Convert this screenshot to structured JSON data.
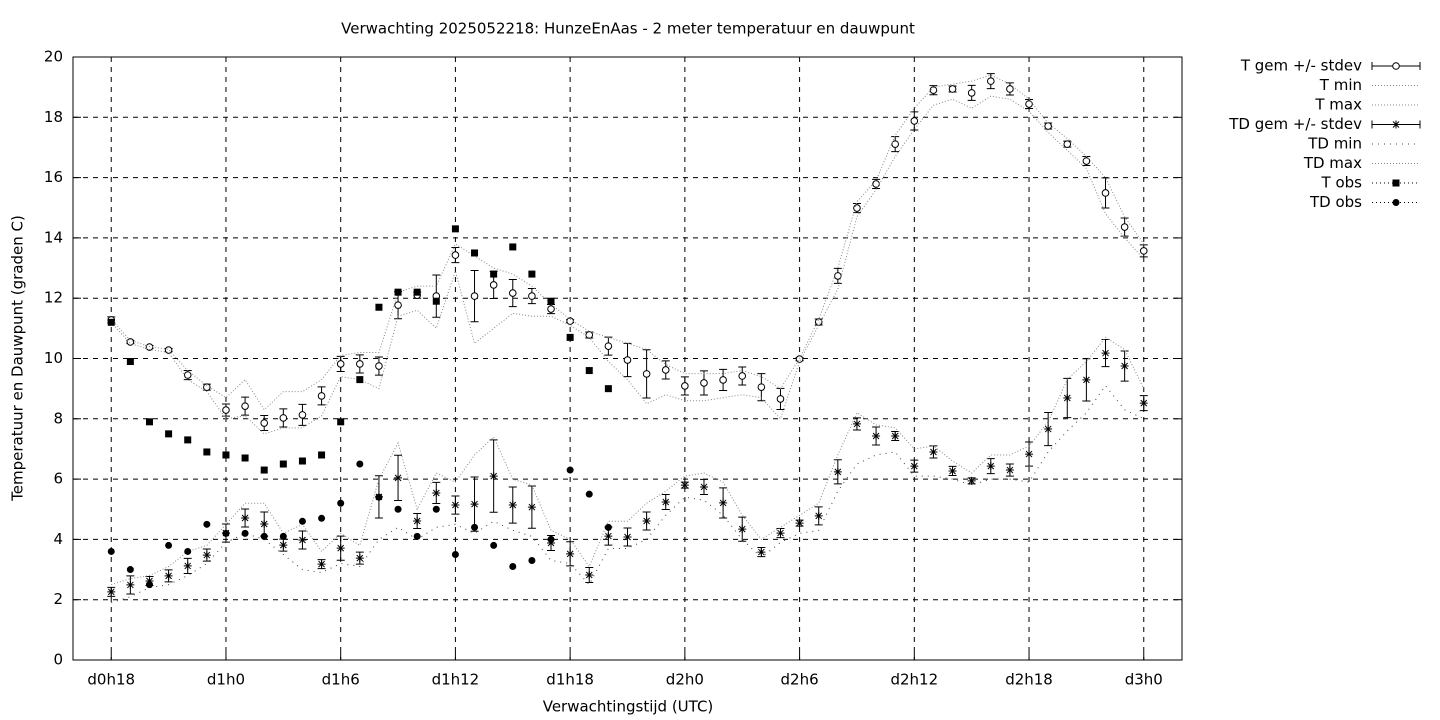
{
  "chart_data": {
    "type": "errorbar_line",
    "title": "Verwachting 2025052218: HunzeEnAas - 2 meter temperatuur en dauwpunt",
    "xlabel": "Verwachtingstijd (UTC)",
    "ylabel": "Temperatuur en Dauwpunt (graden C)",
    "xlim": [
      16,
      74
    ],
    "ylim": [
      0,
      20
    ],
    "xticks": [
      {
        "value": 18,
        "label": "d0h18"
      },
      {
        "value": 24,
        "label": "d1h0"
      },
      {
        "value": 30,
        "label": "d1h6"
      },
      {
        "value": 36,
        "label": "d1h12"
      },
      {
        "value": 42,
        "label": "d1h18"
      },
      {
        "value": 48,
        "label": "d2h0"
      },
      {
        "value": 54,
        "label": "d2h6"
      },
      {
        "value": 60,
        "label": "d2h12"
      },
      {
        "value": 66,
        "label": "d2h18"
      },
      {
        "value": 72,
        "label": "d3h0"
      }
    ],
    "yticks": [
      0,
      2,
      4,
      6,
      8,
      10,
      12,
      14,
      16,
      18,
      20
    ],
    "grid": true,
    "legend": "right",
    "x": [
      18,
      19,
      20,
      21,
      22,
      23,
      24,
      25,
      26,
      27,
      28,
      29,
      30,
      31,
      32,
      33,
      34,
      35,
      36,
      37,
      38,
      39,
      40,
      41,
      42,
      43,
      44,
      45,
      46,
      47,
      48,
      49,
      50,
      51,
      52,
      53,
      54,
      55,
      56,
      57,
      58,
      59,
      60,
      61,
      62,
      63,
      64,
      65,
      66,
      67,
      68,
      69,
      70,
      71,
      72
    ],
    "series": [
      {
        "name": "T gem +/- stdev",
        "style": "circle",
        "color": "#000000",
        "values": [
          11.28,
          10.55,
          10.38,
          10.28,
          9.45,
          9.05,
          8.29,
          8.42,
          7.86,
          8.03,
          8.13,
          8.76,
          9.82,
          9.82,
          9.75,
          11.77,
          12.1,
          12.07,
          13.43,
          12.07,
          12.44,
          12.17,
          12.07,
          11.64,
          11.24,
          10.78,
          10.41,
          9.95,
          9.49,
          9.62,
          9.09,
          9.19,
          9.29,
          9.42,
          9.05,
          8.66,
          9.98,
          11.21,
          12.74,
          14.99,
          15.79,
          17.11,
          17.88,
          18.9,
          18.94,
          18.81,
          19.2,
          18.94,
          18.44,
          17.71,
          17.11,
          16.55,
          15.49,
          14.36,
          13.57
        ],
        "stdev": [
          0.1,
          0.05,
          0.05,
          0.05,
          0.15,
          0.1,
          0.2,
          0.3,
          0.25,
          0.3,
          0.35,
          0.3,
          0.25,
          0.3,
          0.3,
          0.45,
          0.1,
          0.7,
          0.25,
          0.85,
          0.45,
          0.45,
          0.25,
          0.15,
          0.05,
          0.1,
          0.3,
          0.55,
          0.8,
          0.3,
          0.3,
          0.4,
          0.35,
          0.3,
          0.45,
          0.35,
          0.05,
          0.1,
          0.25,
          0.15,
          0.15,
          0.25,
          0.3,
          0.15,
          0.1,
          0.25,
          0.25,
          0.2,
          0.15,
          0.1,
          0.1,
          0.15,
          0.5,
          0.3,
          0.2
        ]
      },
      {
        "name": "T min",
        "style": "dotted",
        "color": "#888888",
        "values": [
          11.2,
          10.5,
          10.3,
          10.2,
          9.3,
          8.9,
          8.0,
          8.1,
          7.5,
          7.7,
          7.7,
          8.1,
          9.4,
          9.3,
          9.0,
          11.4,
          11.6,
          11.0,
          12.9,
          10.5,
          11.0,
          11.5,
          11.4,
          11.4,
          11.1,
          10.7,
          9.9,
          9.3,
          8.5,
          8.8,
          8.6,
          8.6,
          8.7,
          8.8,
          8.7,
          8.0,
          9.9,
          11.1,
          12.3,
          14.7,
          15.6,
          16.7,
          17.6,
          18.4,
          18.6,
          18.3,
          18.7,
          18.6,
          18.2,
          17.5,
          16.9,
          16.3,
          14.8,
          14.0,
          13.3
        ]
      },
      {
        "name": "T max",
        "style": "dotted",
        "color": "#888888",
        "values": [
          11.3,
          10.6,
          10.4,
          10.3,
          9.6,
          9.1,
          8.7,
          9.3,
          8.3,
          8.9,
          8.9,
          9.3,
          10.1,
          10.2,
          10.2,
          12.2,
          12.4,
          12.4,
          13.8,
          13.4,
          13.0,
          12.8,
          12.4,
          11.8,
          11.3,
          10.9,
          10.7,
          10.5,
          10.3,
          9.8,
          9.5,
          9.5,
          9.5,
          9.6,
          9.4,
          9.0,
          10.0,
          11.3,
          13.0,
          15.2,
          15.9,
          17.4,
          18.3,
          19.0,
          19.1,
          19.2,
          19.4,
          19.1,
          18.6,
          17.8,
          17.3,
          16.7,
          16.0,
          14.7,
          13.8
        ]
      },
      {
        "name": "TD gem +/- stdev",
        "style": "star",
        "color": "#000000",
        "values": [
          2.26,
          2.49,
          2.62,
          2.79,
          3.12,
          3.48,
          4.21,
          4.71,
          4.51,
          3.81,
          3.98,
          3.18,
          3.71,
          3.38,
          5.41,
          6.04,
          4.61,
          5.54,
          5.14,
          5.17,
          6.1,
          5.14,
          5.07,
          3.88,
          3.52,
          2.82,
          4.11,
          4.08,
          4.61,
          5.24,
          5.8,
          5.74,
          5.21,
          4.34,
          3.58,
          4.21,
          4.54,
          4.78,
          6.24,
          7.83,
          7.43,
          7.43,
          6.43,
          6.9,
          6.27,
          5.94,
          6.43,
          6.3,
          6.83,
          7.66,
          8.69,
          9.29,
          10.18,
          9.75,
          8.52
        ],
        "stdev": [
          0.15,
          0.3,
          0.15,
          0.2,
          0.25,
          0.2,
          0.3,
          0.3,
          0.4,
          0.2,
          0.3,
          0.15,
          0.4,
          0.2,
          0.7,
          0.75,
          0.25,
          0.35,
          0.3,
          0.9,
          1.2,
          0.6,
          0.7,
          0.25,
          0.4,
          0.25,
          0.3,
          0.3,
          0.3,
          0.25,
          0.1,
          0.25,
          0.5,
          0.4,
          0.15,
          0.15,
          0.1,
          0.3,
          0.4,
          0.2,
          0.3,
          0.15,
          0.2,
          0.2,
          0.15,
          0.1,
          0.25,
          0.2,
          0.4,
          0.55,
          0.65,
          0.7,
          0.45,
          0.5,
          0.25
        ]
      },
      {
        "name": "TD min",
        "style": "sparse",
        "color": "#444444",
        "values": [
          1.9,
          2.1,
          2.4,
          2.5,
          2.8,
          3.2,
          3.9,
          4.2,
          4.0,
          3.5,
          3.0,
          2.9,
          3.2,
          3.1,
          4.0,
          4.4,
          4.0,
          4.4,
          4.5,
          4.2,
          4.6,
          4.3,
          4.1,
          3.3,
          3.2,
          2.5,
          3.7,
          3.7,
          4.0,
          4.8,
          5.4,
          5.3,
          4.8,
          4.0,
          3.4,
          3.9,
          4.2,
          4.3,
          5.6,
          6.5,
          6.8,
          6.9,
          6.1,
          6.1,
          6.0,
          5.8,
          6.0,
          6.0,
          5.9,
          6.9,
          7.6,
          8.2,
          9.1,
          8.3,
          8.0
        ]
      },
      {
        "name": "TD max",
        "style": "dotted",
        "color": "#888888",
        "values": [
          2.5,
          2.7,
          2.8,
          3.1,
          3.6,
          3.8,
          4.5,
          5.2,
          5.2,
          4.2,
          4.5,
          3.6,
          4.2,
          3.8,
          6.0,
          7.2,
          5.0,
          6.2,
          5.9,
          6.8,
          7.4,
          6.0,
          5.8,
          4.3,
          4.0,
          3.1,
          4.6,
          4.6,
          5.2,
          5.6,
          6.1,
          6.2,
          5.9,
          4.8,
          4.0,
          4.4,
          4.8,
          5.2,
          6.8,
          8.2,
          7.8,
          7.7,
          7.0,
          7.1,
          6.6,
          6.2,
          6.8,
          6.8,
          7.1,
          7.9,
          9.3,
          9.9,
          10.7,
          10.3,
          9.0
        ]
      },
      {
        "name": "T obs",
        "style": "square",
        "color": "#000000",
        "values": [
          11.2,
          9.9,
          7.9,
          7.5,
          7.3,
          6.9,
          6.8,
          6.7,
          6.3,
          6.5,
          6.6,
          6.8,
          7.9,
          9.3,
          11.7,
          12.2,
          12.2,
          11.9,
          14.3,
          13.5,
          12.8,
          13.7,
          12.8,
          11.9,
          10.7,
          9.6,
          9.0,
          null,
          null,
          null,
          null,
          null,
          null,
          null,
          null,
          null,
          null,
          null,
          null,
          null,
          null,
          null,
          null,
          null,
          null,
          null,
          null,
          null,
          null,
          null,
          null,
          null,
          null,
          null,
          null
        ]
      },
      {
        "name": "TD obs",
        "style": "dot",
        "color": "#000000",
        "values": [
          3.6,
          3.0,
          2.5,
          3.8,
          3.6,
          4.5,
          4.2,
          4.2,
          4.1,
          4.1,
          4.6,
          4.7,
          5.2,
          6.5,
          5.4,
          5.0,
          4.1,
          5.0,
          3.5,
          4.4,
          3.8,
          3.1,
          3.3,
          4.0,
          6.3,
          5.5,
          4.4,
          null,
          null,
          null,
          null,
          null,
          null,
          null,
          null,
          null,
          null,
          null,
          null,
          null,
          null,
          null,
          null,
          null,
          null,
          null,
          null,
          null,
          null,
          null,
          null,
          null,
          null,
          null,
          null
        ]
      }
    ]
  }
}
